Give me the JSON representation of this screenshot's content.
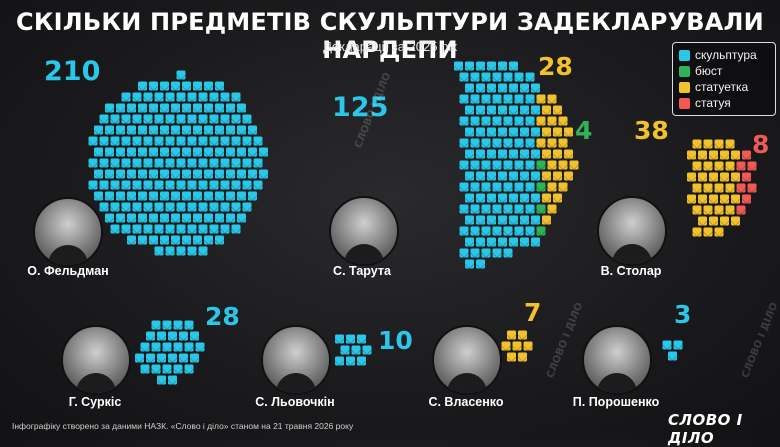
{
  "title": "СКІЛЬКИ ПРЕДМЕТІВ СКУЛЬПТУРИ ЗАДЕКЛАРУВАЛИ НАРДЕПИ",
  "subtitle": "Декларації за 2025 рік",
  "footer": "Інфографіку створено за даними НАЗК. «Слово і діло» станом на 21 травня 2026 року",
  "logo_text": "СЛОВО І ДІЛО",
  "watermark_text": "СЛОВО І ДІЛО",
  "colors": {
    "скульптура": "#29c7e8",
    "бюст": "#2fb35a",
    "статуетка": "#f2c12e",
    "статуя": "#ef5a55"
  },
  "chart_data": {
    "type": "packed-icons",
    "title": "СКІЛЬКИ ПРЕДМЕТІВ СКУЛЬПТУРИ ЗАДЕКЛАРУВАЛИ НАРДЕПИ",
    "subtitle": "Декларації за 2025 рік",
    "legend": {
      "placement": "top-right",
      "entries": [
        "скульптура",
        "бюст",
        "статуетка",
        "статуя"
      ]
    },
    "people": [
      {
        "name": "О. Фельдман",
        "items": [
          {
            "category": "скульптура",
            "count": 210
          }
        ]
      },
      {
        "name": "С. Тарута",
        "items": [
          {
            "category": "скульптура",
            "count": 125
          },
          {
            "category": "статуетка",
            "count": 28
          },
          {
            "category": "бюст",
            "count": 4
          }
        ]
      },
      {
        "name": "В. Столар",
        "items": [
          {
            "category": "статуетка",
            "count": 38
          },
          {
            "category": "статуя",
            "count": 8
          }
        ]
      },
      {
        "name": "Г. Суркіс",
        "items": [
          {
            "category": "скульптура",
            "count": 28
          }
        ]
      },
      {
        "name": "С. Льовочкін",
        "items": [
          {
            "category": "скульптура",
            "count": 10
          }
        ]
      },
      {
        "name": "С. Власенко",
        "items": [
          {
            "category": "статуетка",
            "count": 7
          }
        ]
      },
      {
        "name": "П. Порошенко",
        "items": [
          {
            "category": "скульптура",
            "count": 3
          }
        ]
      }
    ]
  }
}
